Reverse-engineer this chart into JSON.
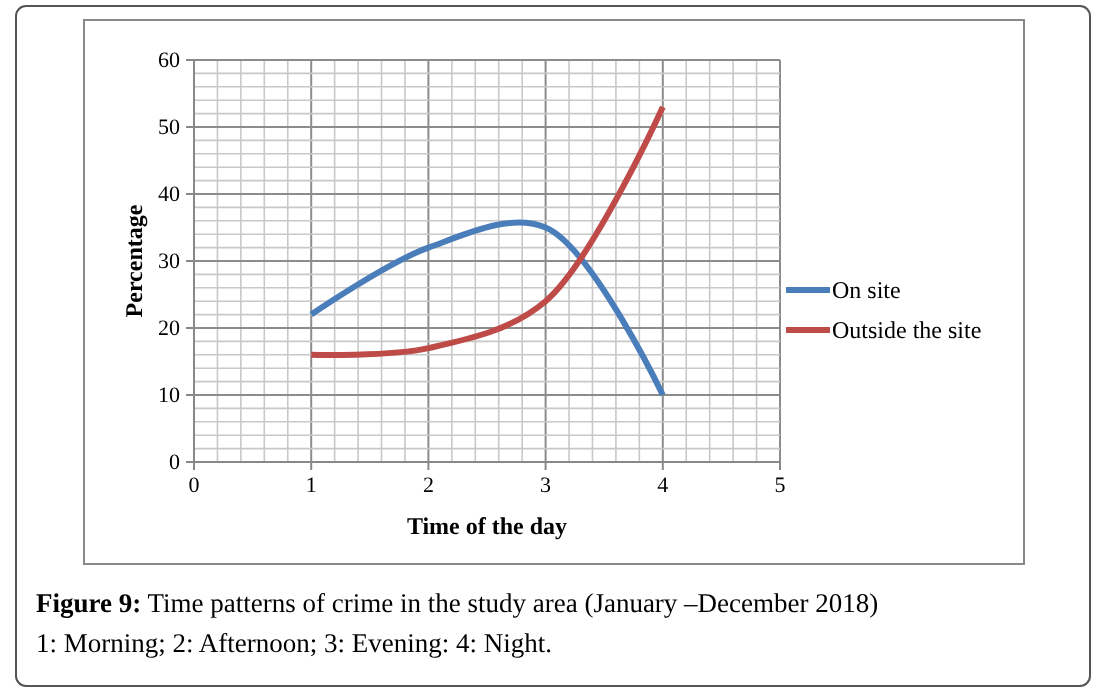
{
  "chart_data": {
    "type": "line",
    "title": "Figure 9: Time patterns of crime in the study area (January –December 2018)",
    "annotations": [
      "1: Morning; 2: Afternoon; 3: Evening: 4: Night."
    ],
    "xlabel": "Time of the day",
    "ylabel": "Percentage",
    "x": [
      1,
      2,
      3,
      4
    ],
    "series": [
      {
        "name": "On site",
        "color": "#4a7ebb",
        "values": [
          22,
          32,
          35,
          10
        ]
      },
      {
        "name": "Outside the site",
        "color": "#be4b48",
        "values": [
          16,
          17,
          24,
          53
        ]
      }
    ],
    "xlim": [
      0,
      5
    ],
    "xticks": [
      0,
      1,
      2,
      3,
      4,
      5
    ],
    "ylim": [
      0,
      60
    ],
    "yticks": [
      0,
      10,
      20,
      30,
      40,
      50,
      60
    ],
    "grid": true,
    "legend": "right",
    "marker": "none",
    "line_style": "solid"
  }
}
